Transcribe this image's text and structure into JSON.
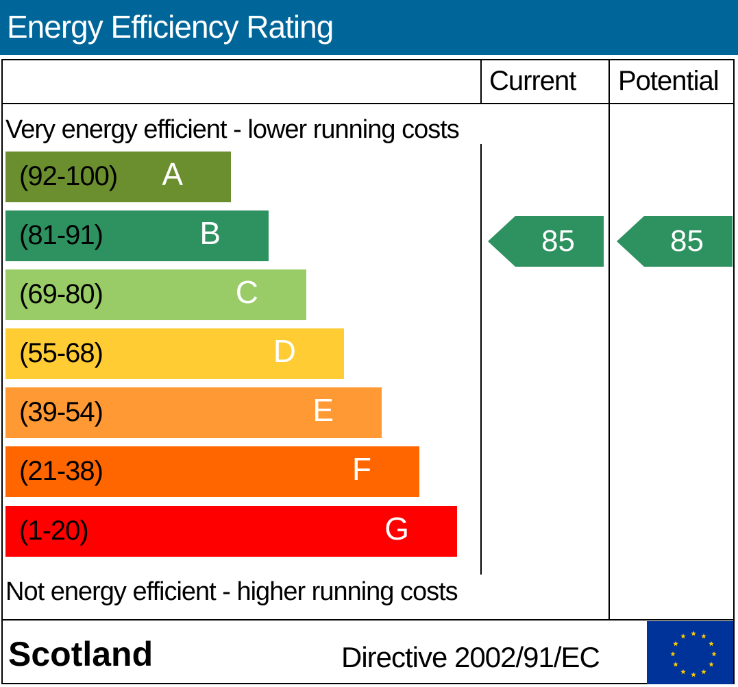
{
  "header": {
    "title": "Energy Efficiency Rating"
  },
  "columns": {
    "current": "Current",
    "potential": "Potential"
  },
  "notes": {
    "top": "Very energy efficient - lower running costs",
    "bottom": "Not energy efficient - higher running costs"
  },
  "chart_data": {
    "type": "bar",
    "title": "Energy Efficiency Rating",
    "categories": [
      "A",
      "B",
      "C",
      "D",
      "E",
      "F",
      "G"
    ],
    "ranges": [
      "(92-100)",
      "(81-91)",
      "(69-80)",
      "(55-68)",
      "(39-54)",
      "(21-38)",
      "(1-20)"
    ],
    "colors": [
      "#6b8e2f",
      "#2e9160",
      "#99cc66",
      "#ffcc33",
      "#ff9933",
      "#ff6600",
      "#ff0000"
    ],
    "current_rating": 85,
    "current_band": "B",
    "potential_rating": 85,
    "potential_band": "B",
    "rating_color": "#2e9160"
  },
  "footer": {
    "country": "Scotland",
    "directive": "Directive 2002/91/EC"
  },
  "eu_flag": {
    "icon": "eu-flag-icon",
    "background": "#003399",
    "star_color": "#ffcc00"
  }
}
